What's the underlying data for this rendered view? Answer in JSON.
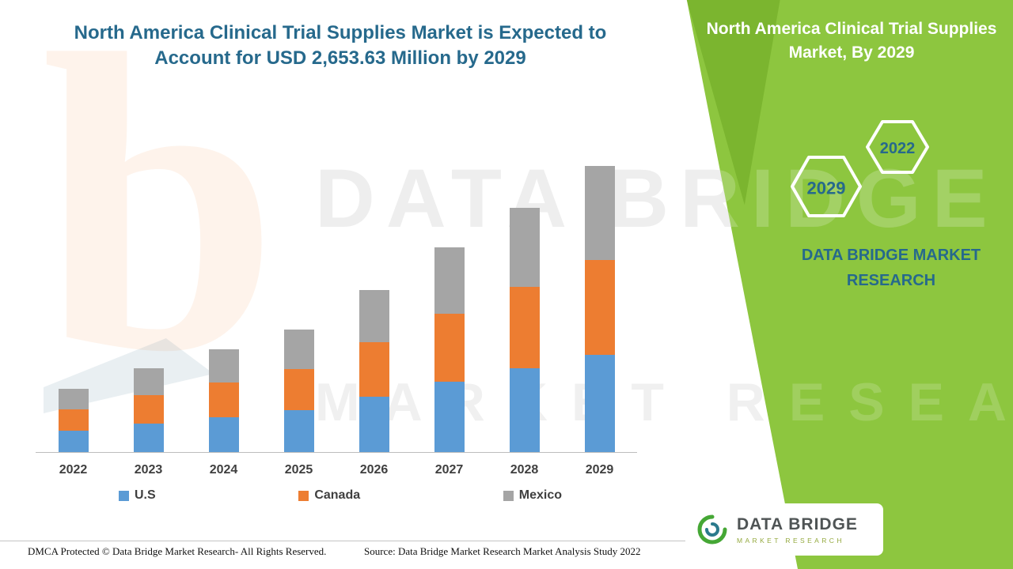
{
  "colors": {
    "teal": "#26698C",
    "green": "#8DC63F",
    "green_dark": "#79B22E"
  },
  "header": {
    "left_title_line1": "North America Clinical Trial Supplies Market is Expected to",
    "left_title_line2": "Account for USD 2,653.63 Million by 2029",
    "right_title_line1": "North America Clinical Trial Supplies",
    "right_title_line2": "Market, By 2029"
  },
  "watermark": {
    "letter": "b",
    "line1": "DATA BRIDGE",
    "line2": "MARKET RESEARCH"
  },
  "side_panel": {
    "hexagon_left_label": "2029",
    "hexagon_right_label": "2022",
    "brand_line1": "DATA BRIDGE MARKET",
    "brand_line2": "RESEARCH"
  },
  "chart_data": {
    "type": "bar",
    "stacked": true,
    "title": "North America Clinical Trial Supplies Market is Expected to Account for USD 2,653.63 Million by 2029",
    "xlabel": "",
    "ylabel": "",
    "unit": "USD Million",
    "ylim": [
      0,
      2800
    ],
    "gridlines": false,
    "legend_position": "bottom",
    "categories": [
      "2022",
      "2023",
      "2024",
      "2025",
      "2026",
      "2027",
      "2028",
      "2029"
    ],
    "series": [
      {
        "name": "U.S",
        "color": "#5B9BD5",
        "values": [
          200,
          265,
          325,
          390,
          515,
          650,
          775,
          905
        ]
      },
      {
        "name": "Canada",
        "color": "#ED7D31",
        "values": [
          198,
          262,
          320,
          382,
          505,
          635,
          755,
          880
        ]
      },
      {
        "name": "Mexico",
        "color": "#A5A5A5",
        "values": [
          188,
          250,
          308,
          364,
          483,
          614,
          735,
          868.63
        ]
      }
    ],
    "totals": [
      586,
      777,
      953,
      1136,
      1503,
      1899,
      2265,
      2653.63
    ],
    "labeled_total_2029": 2653.63
  },
  "footer": {
    "left": "DMCA Protected © Data Bridge Market Research- All Rights Reserved.",
    "source": "Source: Data Bridge Market Research Market Analysis Study 2022"
  },
  "logo": {
    "name": "DATA BRIDGE",
    "subtitle": "MARKET RESEARCH"
  }
}
